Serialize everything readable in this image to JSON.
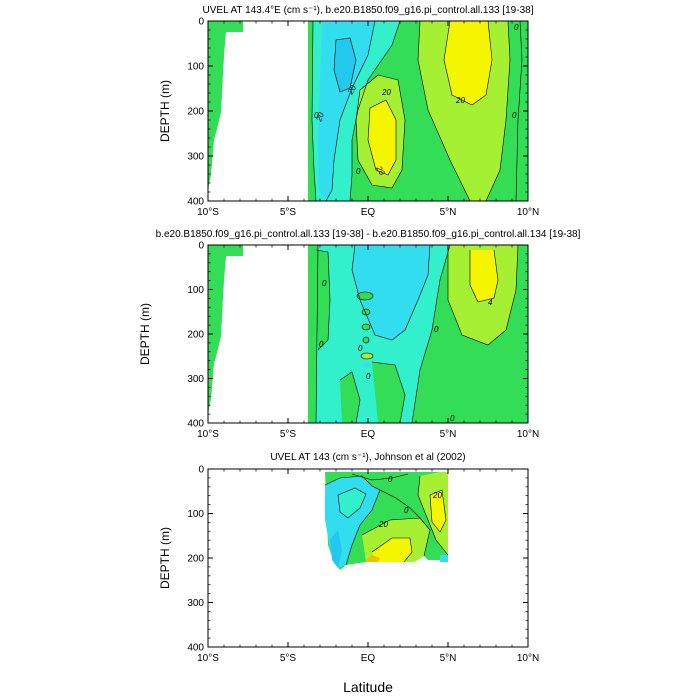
{
  "chart_data": [
    {
      "type": "contour",
      "title": "UVEL AT 143.4°E (cm s⁻¹), b.e20.B1850.f09_g16.pi_control.all.133 [19-38]",
      "ylabel": "DEPTH (m)",
      "xticks": [
        "10°S",
        "5°S",
        "EQ",
        "5°N",
        "10°N"
      ],
      "yticks": [
        "0",
        "100",
        "200",
        "300",
        "400"
      ],
      "xlim": [
        -10,
        10
      ],
      "ylim": [
        400,
        0
      ],
      "contour_labels": [
        "20",
        "20",
        "20",
        "20",
        "20",
        "0",
        "0",
        "0",
        "0"
      ],
      "colors": {
        "land": "#ffffff",
        "cyan": "#33ddf0",
        "aqua": "#33f0cc",
        "green": "#33dd55",
        "lime": "#a6f033",
        "yellow": "#f5f500"
      }
    },
    {
      "type": "contour",
      "title": "b.e20.B1850.f09_g16.pi_control.all.133 [19-38] - b.e20.B1850.f09_g16.pi_control.all.134 [19-38]",
      "ylabel": "DEPTH (m)",
      "xticks": [
        "10°S",
        "5°S",
        "EQ",
        "5°N",
        "10°N"
      ],
      "yticks": [
        "0",
        "100",
        "200",
        "300",
        "400"
      ],
      "xlim": [
        -10,
        10
      ],
      "ylim": [
        400,
        0
      ],
      "contour_labels": [
        "0",
        "0",
        "0",
        "0",
        "0",
        "4",
        "0"
      ]
    },
    {
      "type": "contour",
      "title": "UVEL AT 143 (cm s⁻¹), Johnson et al (2002)",
      "ylabel": "DEPTH (m)",
      "xlabel": "Latitude",
      "xticks": [
        "10°S",
        "5°S",
        "EQ",
        "5°N",
        "10°N"
      ],
      "yticks": [
        "0",
        "100",
        "200",
        "300",
        "400"
      ],
      "xlim": [
        -10,
        10
      ],
      "ylim": [
        400,
        0
      ],
      "contour_labels": [
        "0",
        "20",
        "20",
        "0"
      ]
    }
  ]
}
